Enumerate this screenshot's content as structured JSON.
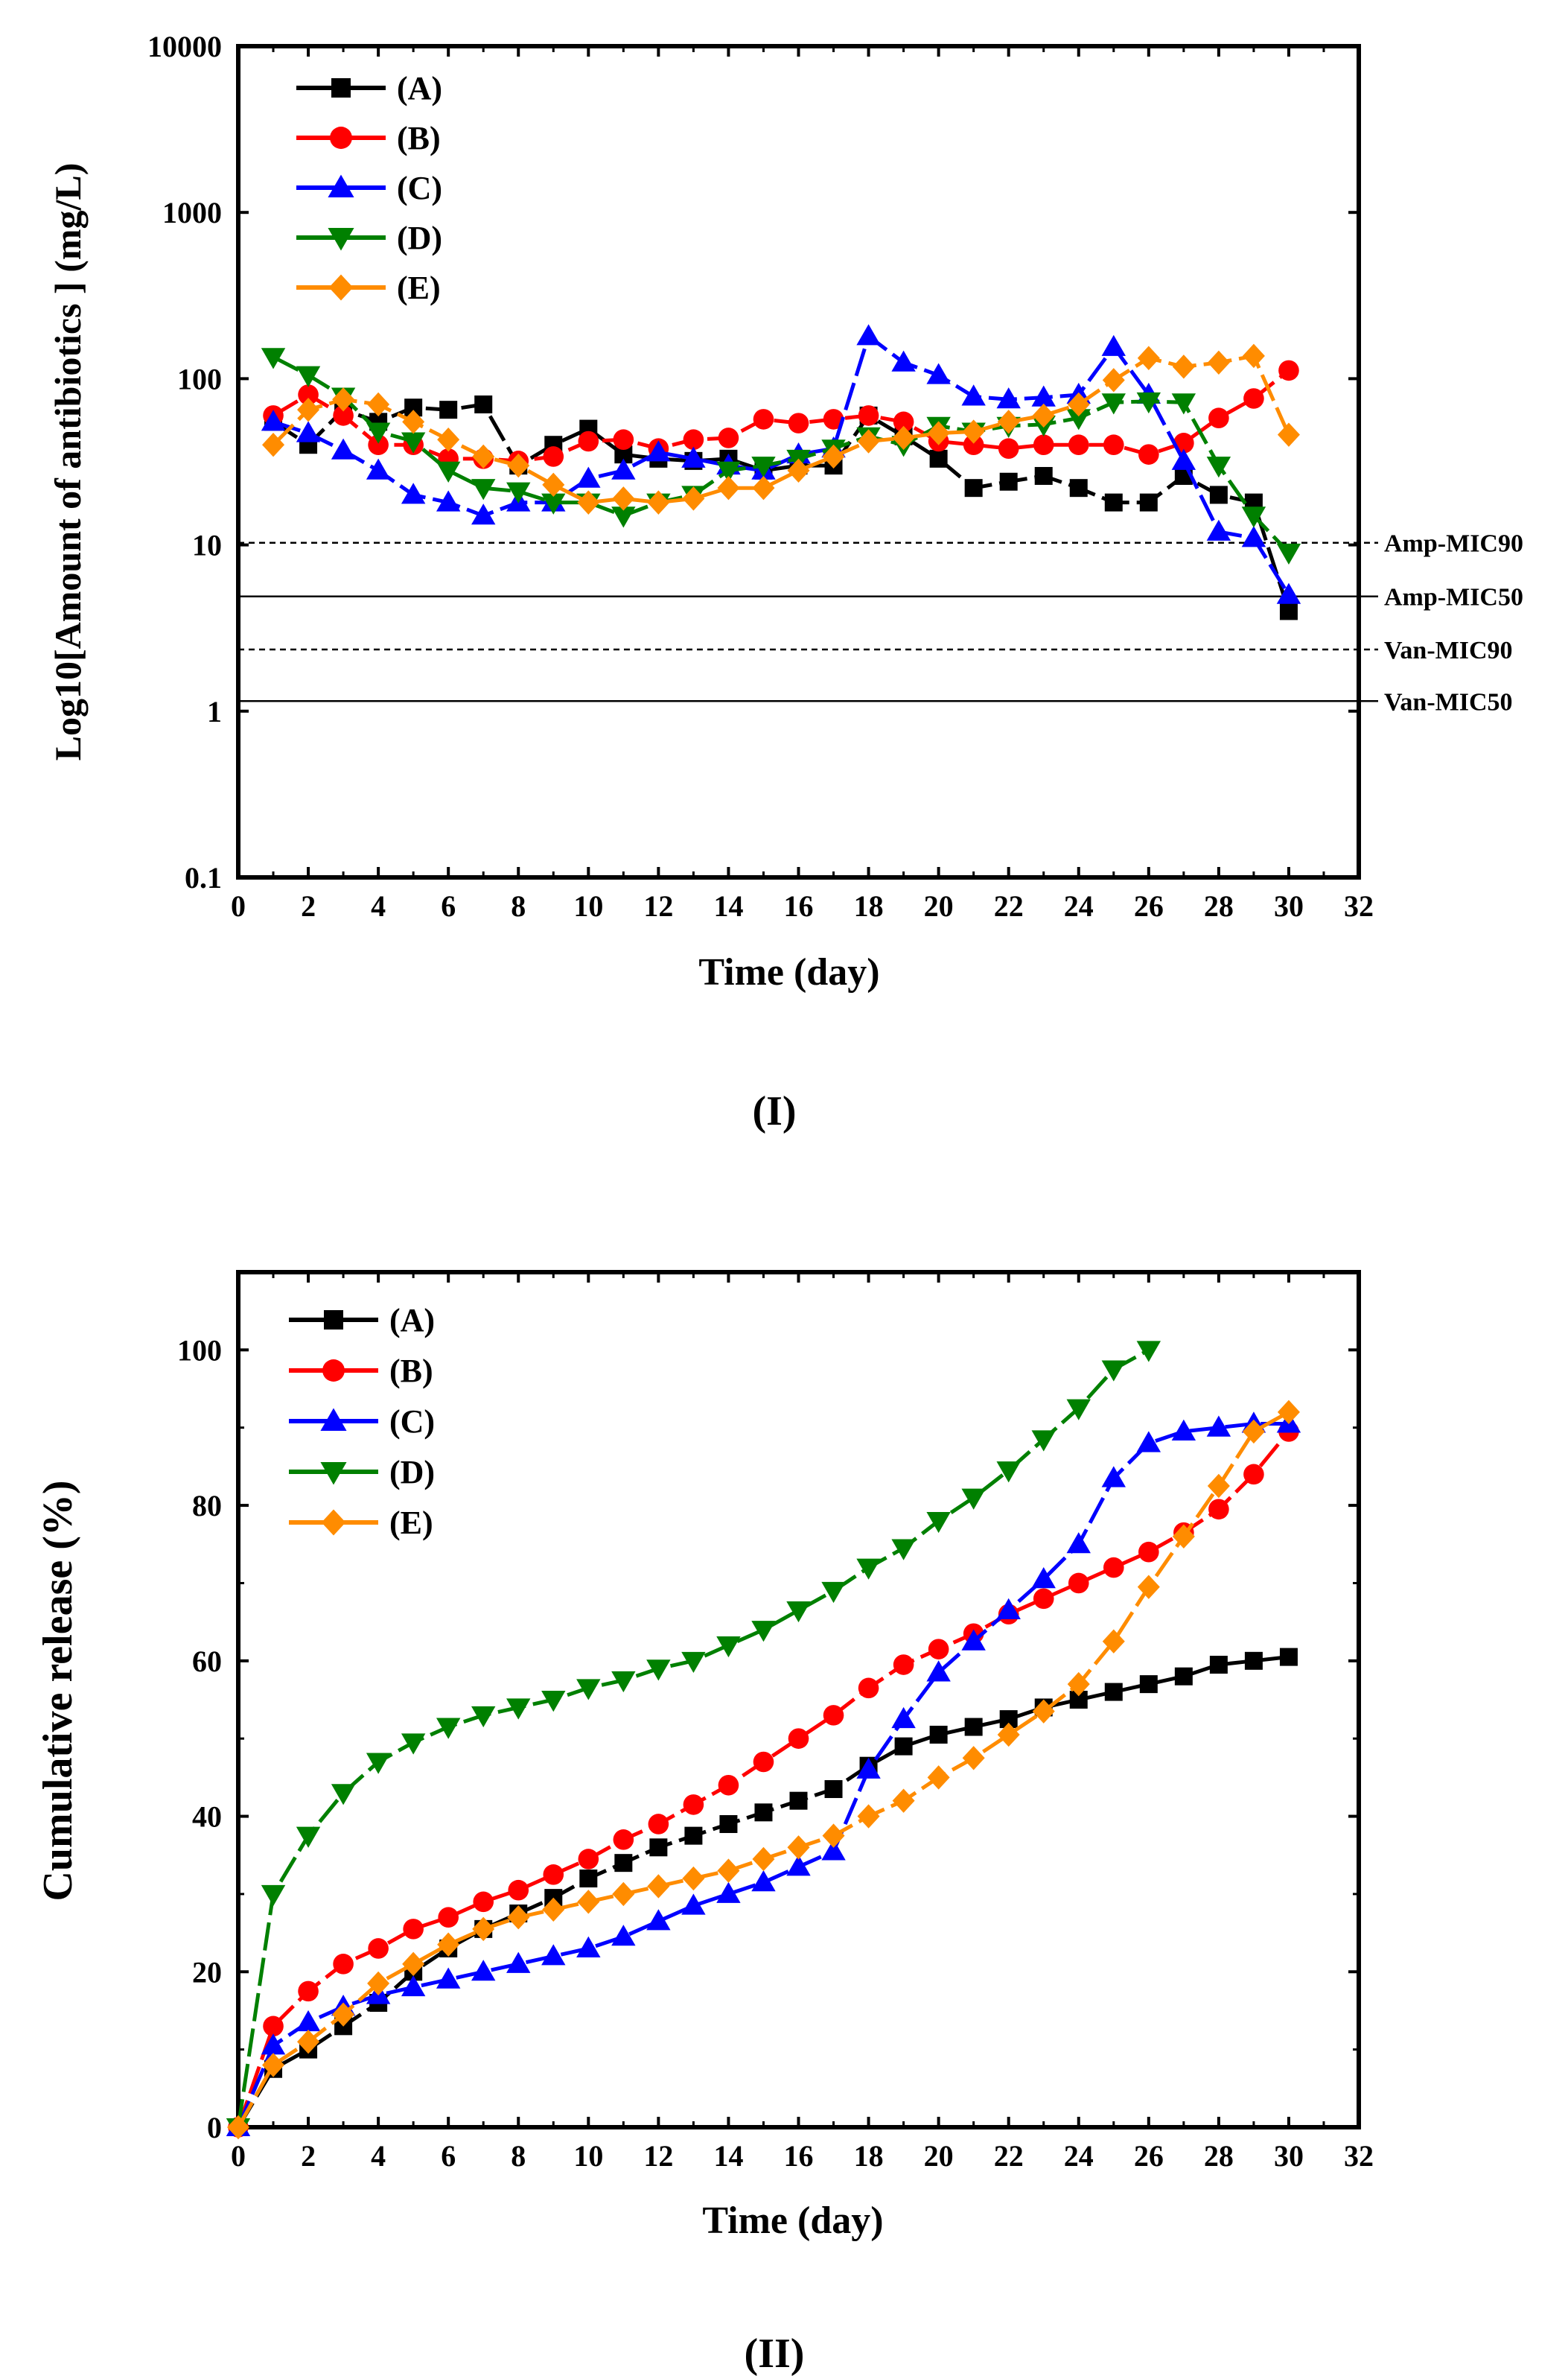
{
  "colors": {
    "A": "#000000",
    "B": "#ff0000",
    "C": "#0000ff",
    "D": "#008000",
    "E": "#ff8c00"
  },
  "chart_data": [
    {
      "type": "line",
      "panel_label": "(I)",
      "xlabel": "Time (day)",
      "ylabel": "Log10[Amount of antibiotics ] (mg/L)",
      "xlim": [
        0,
        32
      ],
      "ylim": [
        0.1,
        10000
      ],
      "yscale": "log",
      "x_ticks": [
        "0",
        "2",
        "4",
        "6",
        "8",
        "10",
        "12",
        "14",
        "16",
        "18",
        "20",
        "22",
        "24",
        "26",
        "28",
        "30",
        "32"
      ],
      "y_ticks": [
        "0.1",
        "1",
        "10",
        "100",
        "1000",
        "10000"
      ],
      "legend": "top-left",
      "series": [
        {
          "name": "(A)",
          "key": "A",
          "marker": "square",
          "x": [
            1,
            2,
            3,
            4,
            5,
            6,
            7,
            8,
            9,
            10,
            11,
            12,
            13,
            14,
            15,
            16,
            17,
            18,
            19,
            20,
            21,
            22,
            23,
            24,
            25,
            26,
            27,
            28,
            29,
            30
          ],
          "values": [
            55,
            40,
            65,
            55,
            67,
            65,
            70,
            30,
            40,
            50,
            35,
            33,
            32,
            33,
            28,
            30,
            30,
            60,
            45,
            33,
            22,
            24,
            26,
            22,
            18,
            18,
            26,
            20,
            18,
            4
          ]
        },
        {
          "name": "(B)",
          "key": "B",
          "marker": "circle",
          "x": [
            1,
            2,
            3,
            4,
            5,
            6,
            7,
            8,
            9,
            10,
            11,
            12,
            13,
            14,
            15,
            16,
            17,
            18,
            19,
            20,
            21,
            22,
            23,
            24,
            25,
            26,
            27,
            28,
            29,
            30
          ],
          "values": [
            60,
            80,
            60,
            40,
            40,
            33,
            33,
            32,
            34,
            42,
            43,
            38,
            43,
            44,
            57,
            54,
            57,
            60,
            55,
            42,
            40,
            38,
            40,
            40,
            40,
            35,
            41,
            58,
            76,
            112
          ]
        },
        {
          "name": "(C)",
          "key": "C",
          "marker": "triangle-up",
          "x": [
            1,
            2,
            3,
            4,
            5,
            6,
            7,
            8,
            9,
            10,
            11,
            12,
            13,
            14,
            15,
            16,
            17,
            18,
            19,
            20,
            21,
            22,
            23,
            24,
            25,
            26,
            27,
            28,
            29,
            30
          ],
          "values": [
            55,
            47,
            37,
            28,
            20,
            18,
            15,
            18,
            18,
            25,
            28,
            36,
            33,
            30,
            28,
            35,
            38,
            180,
            125,
            105,
            78,
            75,
            77,
            80,
            155,
            80,
            32,
            12,
            11,
            5
          ]
        },
        {
          "name": "(D)",
          "key": "D",
          "marker": "triangle-down",
          "x": [
            1,
            2,
            3,
            4,
            5,
            6,
            7,
            8,
            9,
            10,
            11,
            12,
            13,
            14,
            15,
            16,
            17,
            18,
            19,
            20,
            21,
            22,
            23,
            24,
            25,
            26,
            27,
            28,
            29,
            30
          ],
          "values": [
            135,
            105,
            78,
            48,
            42,
            28,
            22,
            21,
            18,
            18,
            15,
            18,
            20,
            28,
            30,
            33,
            38,
            45,
            40,
            52,
            48,
            52,
            53,
            58,
            72,
            73,
            72,
            30,
            15,
            9
          ]
        },
        {
          "name": "(E)",
          "key": "E",
          "marker": "diamond",
          "x": [
            1,
            2,
            3,
            4,
            5,
            6,
            7,
            8,
            9,
            10,
            11,
            12,
            13,
            14,
            15,
            16,
            17,
            18,
            19,
            20,
            21,
            22,
            23,
            24,
            25,
            26,
            27,
            28,
            29,
            30
          ],
          "values": [
            40,
            65,
            75,
            70,
            55,
            43,
            34,
            30,
            23,
            18,
            19,
            18,
            19,
            22,
            22,
            28,
            34,
            42,
            44,
            47,
            48,
            55,
            60,
            70,
            98,
            133,
            118,
            125,
            137,
            46
          ]
        }
      ],
      "reference_lines": [
        {
          "label": "Amp-MIC90",
          "value": 10.3,
          "style": "dashed"
        },
        {
          "label": "Amp-MIC50",
          "value": 4.9,
          "style": "solid"
        },
        {
          "label": "Van-MIC90",
          "value": 2.35,
          "style": "dashed"
        },
        {
          "label": "Van-MIC50",
          "value": 1.15,
          "style": "solid"
        }
      ]
    },
    {
      "type": "line",
      "panel_label": "(II)",
      "xlabel": "Time (day)",
      "ylabel": "Cumulative release  (%)",
      "xlim": [
        0,
        32
      ],
      "ylim": [
        0,
        110
      ],
      "yscale": "linear",
      "x_ticks": [
        "0",
        "2",
        "4",
        "6",
        "8",
        "10",
        "12",
        "14",
        "16",
        "18",
        "20",
        "22",
        "24",
        "26",
        "28",
        "30",
        "32"
      ],
      "y_ticks": [
        "0",
        "20",
        "40",
        "60",
        "80",
        "100"
      ],
      "legend": "top-left",
      "series": [
        {
          "name": "(A)",
          "key": "A",
          "marker": "square",
          "x": [
            0,
            1,
            2,
            3,
            4,
            5,
            6,
            7,
            8,
            9,
            10,
            11,
            12,
            13,
            14,
            15,
            16,
            17,
            18,
            19,
            20,
            21,
            22,
            23,
            24,
            25,
            26,
            27,
            28,
            29,
            30
          ],
          "values": [
            0,
            7.5,
            10,
            13,
            16,
            20,
            23,
            25.5,
            27.5,
            29.5,
            32,
            34,
            36,
            37.5,
            39,
            40.5,
            42,
            43.5,
            46.5,
            49,
            50.5,
            51.5,
            52.5,
            54,
            55,
            56,
            57,
            58,
            59.5,
            60,
            60.5
          ]
        },
        {
          "name": "(B)",
          "key": "B",
          "marker": "circle",
          "x": [
            0,
            1,
            2,
            3,
            4,
            5,
            6,
            7,
            8,
            9,
            10,
            11,
            12,
            13,
            14,
            15,
            16,
            17,
            18,
            19,
            20,
            21,
            22,
            23,
            24,
            25,
            26,
            27,
            28,
            29,
            30
          ],
          "values": [
            0,
            13,
            17.5,
            21,
            23,
            25.5,
            27,
            29,
            30.5,
            32.5,
            34.5,
            37,
            39,
            41.5,
            44,
            47,
            50,
            53,
            56.5,
            59.5,
            61.5,
            63.5,
            66,
            68,
            70,
            72,
            74,
            76.5,
            79.5,
            84,
            89.5
          ]
        },
        {
          "name": "(C)",
          "key": "C",
          "marker": "triangle-up",
          "x": [
            0,
            1,
            2,
            3,
            4,
            5,
            6,
            7,
            8,
            9,
            10,
            11,
            12,
            13,
            14,
            15,
            16,
            17,
            18,
            19,
            20,
            21,
            22,
            23,
            24,
            25,
            26,
            27,
            28,
            29,
            30
          ],
          "values": [
            0,
            10.5,
            13.5,
            15.5,
            17,
            18,
            19,
            20,
            21,
            22,
            23,
            24.5,
            26.5,
            28.5,
            30,
            31.5,
            33.5,
            35.5,
            46,
            52.5,
            58.5,
            62.5,
            66.5,
            70.5,
            75,
            83.5,
            88,
            89.5,
            90,
            90.5,
            90.5
          ]
        },
        {
          "name": "(D)",
          "key": "D",
          "marker": "triangle-down",
          "x": [
            0,
            1,
            2,
            3,
            4,
            5,
            6,
            7,
            8,
            9,
            10,
            11,
            12,
            13,
            14,
            15,
            16,
            17,
            18,
            19,
            20,
            21,
            22,
            23,
            24,
            25,
            26
          ],
          "values": [
            0,
            30,
            37.5,
            43,
            47,
            49.5,
            51.5,
            53,
            54,
            55,
            56.5,
            57.5,
            59,
            60,
            62,
            64,
            66.5,
            69,
            72,
            74.5,
            78,
            81,
            84.5,
            88.5,
            92.5,
            97.5,
            100
          ]
        },
        {
          "name": "(E)",
          "key": "E",
          "marker": "diamond",
          "x": [
            0,
            1,
            2,
            3,
            4,
            5,
            6,
            7,
            8,
            9,
            10,
            11,
            12,
            13,
            14,
            15,
            16,
            17,
            18,
            19,
            20,
            21,
            22,
            23,
            24,
            25,
            26,
            27,
            28,
            29,
            30
          ],
          "values": [
            0,
            8,
            11,
            14.5,
            18.5,
            21,
            23.5,
            25.5,
            27,
            28,
            29,
            30,
            31,
            32,
            33,
            34.5,
            36,
            37.5,
            40,
            42,
            45,
            47.5,
            50.5,
            53.5,
            57,
            62.5,
            69.5,
            76,
            82.5,
            89.5,
            92
          ]
        }
      ]
    }
  ]
}
